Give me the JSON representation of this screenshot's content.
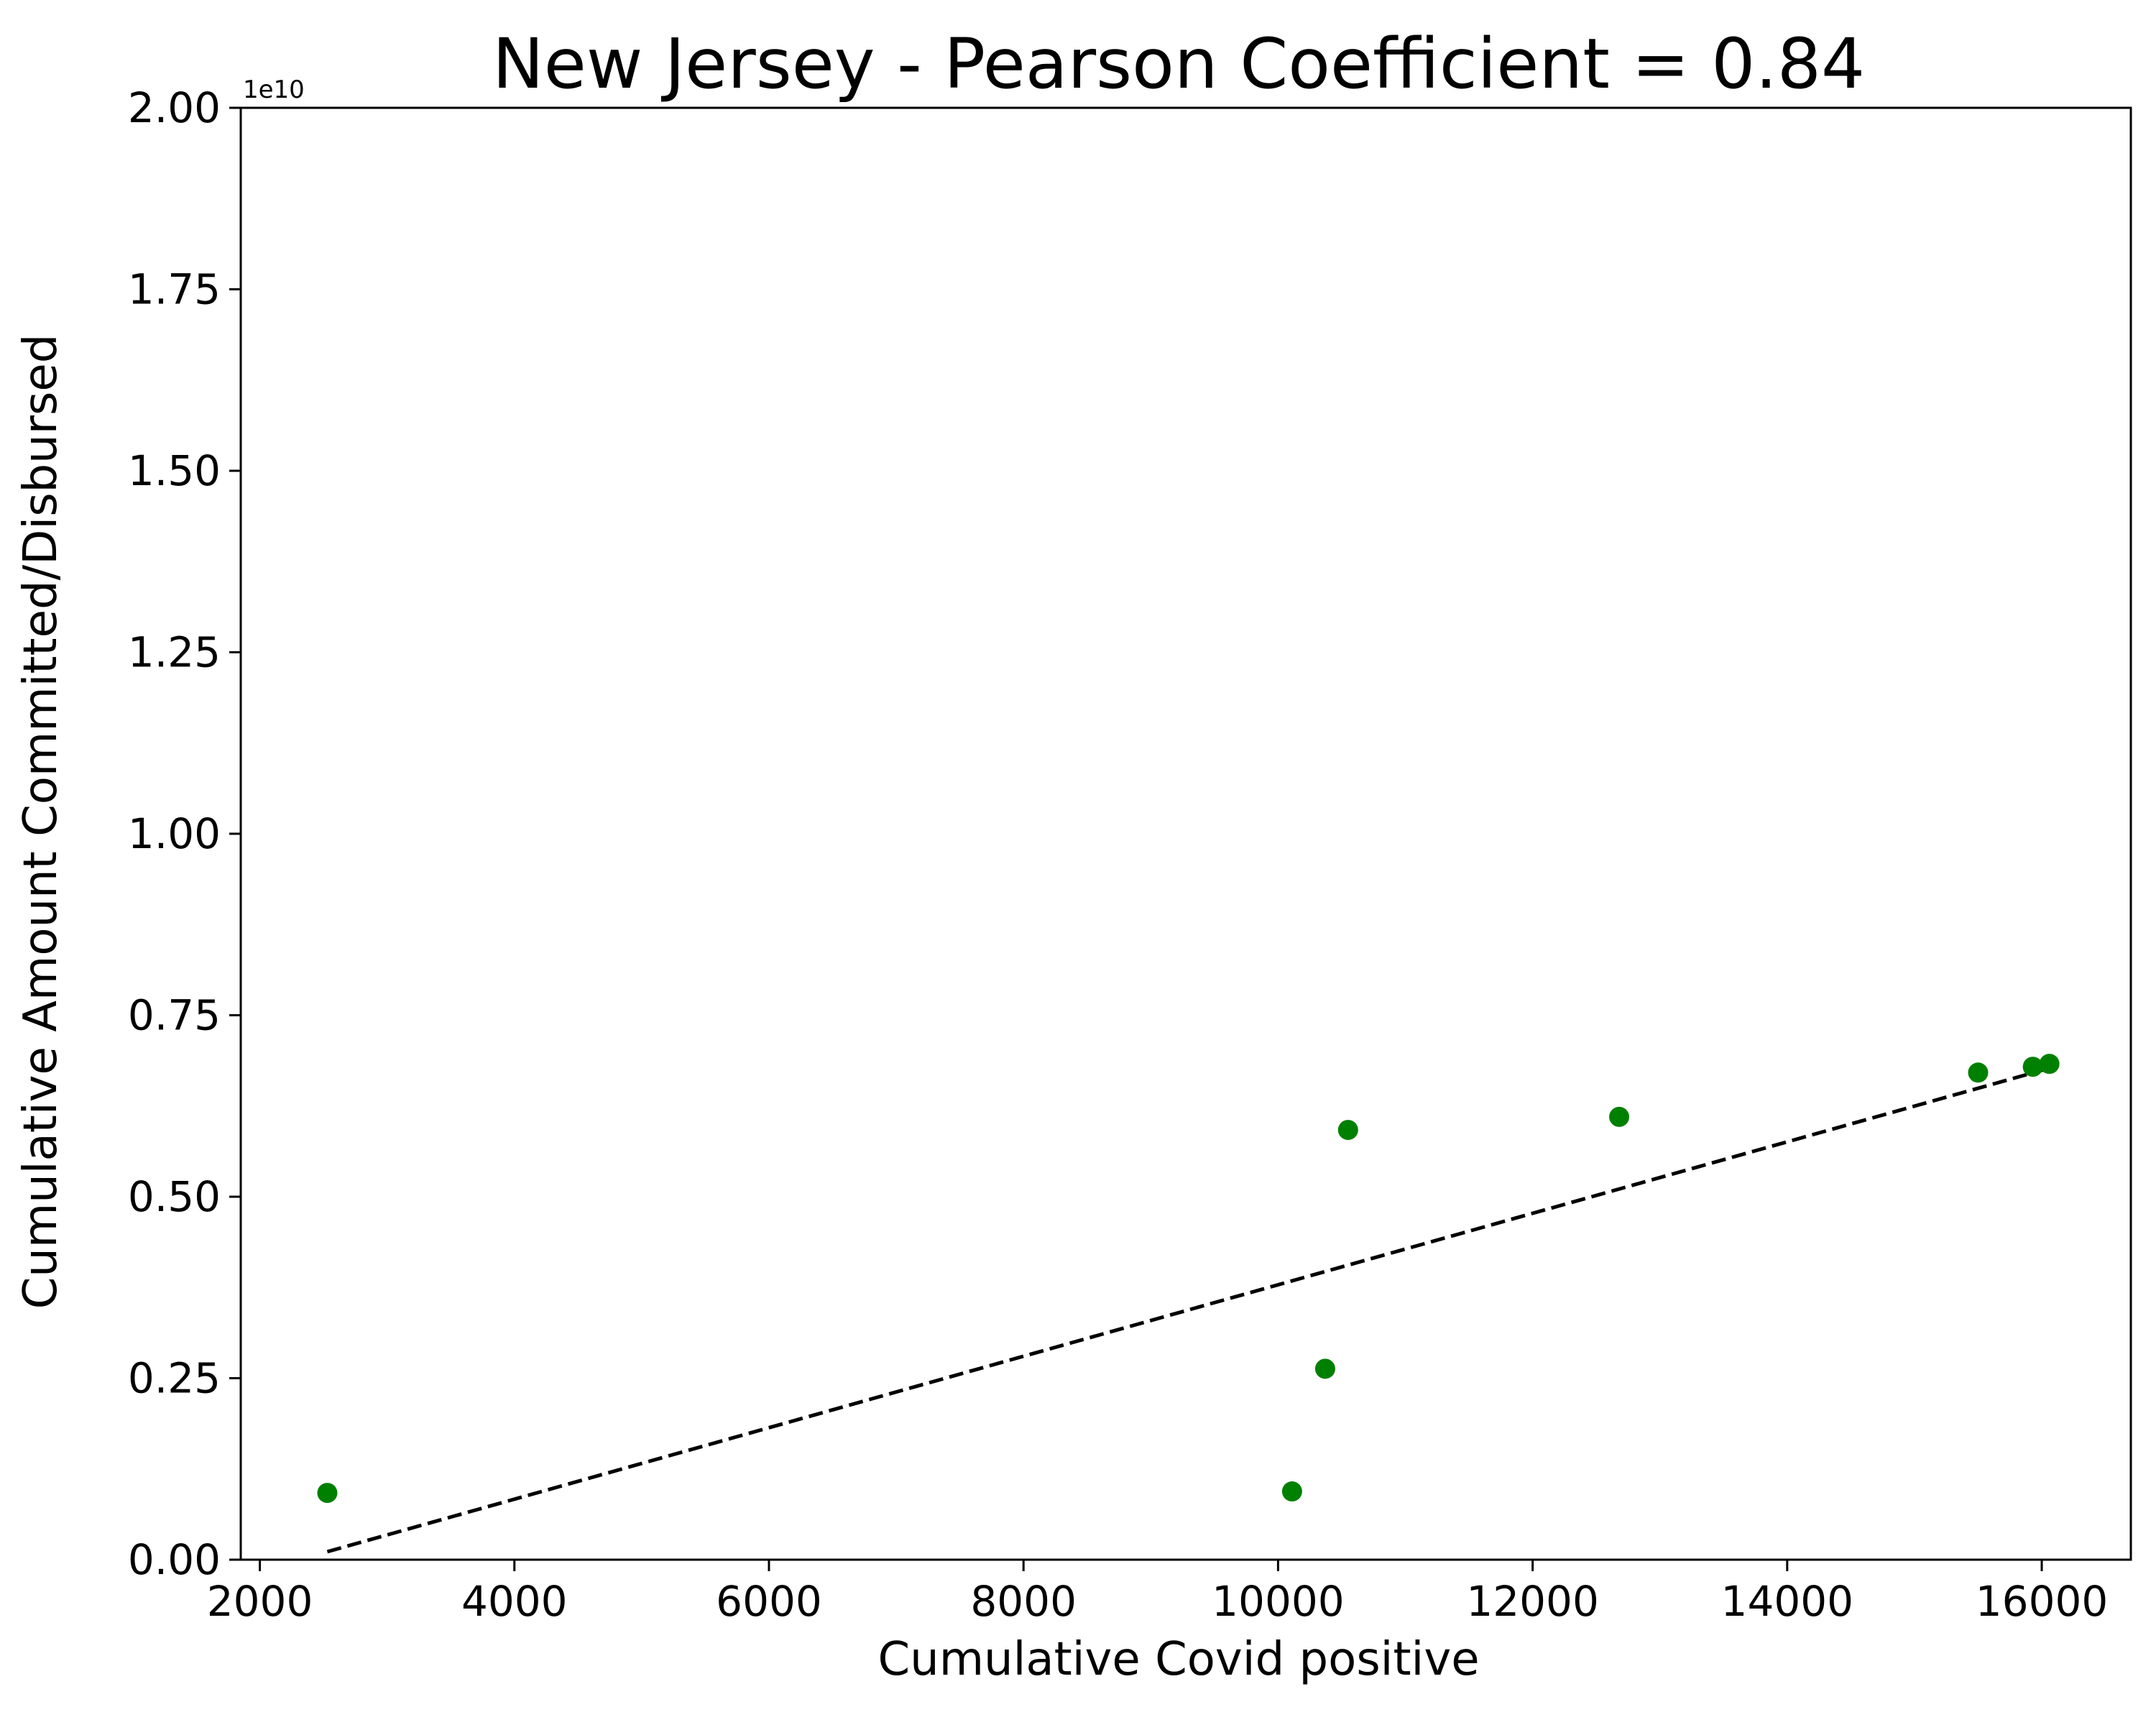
{
  "chart_data": {
    "type": "scatter",
    "title": "New Jersey - Pearson Coefficient = 0.84",
    "xlabel": "Cumulative Covid positive",
    "ylabel": "Cumulative Amount Committed/Disbursed",
    "y_offset_label": "1e10",
    "xlim": [
      1850,
      16700
    ],
    "ylim": [
      0,
      2.0
    ],
    "x_ticks": [
      2000,
      4000,
      6000,
      8000,
      10000,
      12000,
      14000,
      16000
    ],
    "x_tick_labels": [
      "2000",
      "4000",
      "6000",
      "8000",
      "10000",
      "12000",
      "14000",
      "16000"
    ],
    "y_ticks": [
      0,
      0.25,
      0.5,
      0.75,
      1.0,
      1.25,
      1.5,
      1.75,
      2.0
    ],
    "y_tick_labels": [
      "0.00",
      "0.25",
      "0.50",
      "0.75",
      "1.00",
      "1.25",
      "1.50",
      "1.75",
      "2.00"
    ],
    "grid": false,
    "point_color": "#008000",
    "trend_color": "#000000",
    "points": [
      {
        "x": 2530,
        "y": 0.092
      },
      {
        "x": 10110,
        "y": 0.094
      },
      {
        "x": 10370,
        "y": 0.263
      },
      {
        "x": 10550,
        "y": 0.592
      },
      {
        "x": 12680,
        "y": 0.61
      },
      {
        "x": 15500,
        "y": 0.671
      },
      {
        "x": 15930,
        "y": 0.679
      },
      {
        "x": 16060,
        "y": 0.683
      }
    ],
    "trend_line": [
      {
        "x": 2530,
        "y": 0.011
      },
      {
        "x": 16060,
        "y": 0.677
      }
    ]
  }
}
